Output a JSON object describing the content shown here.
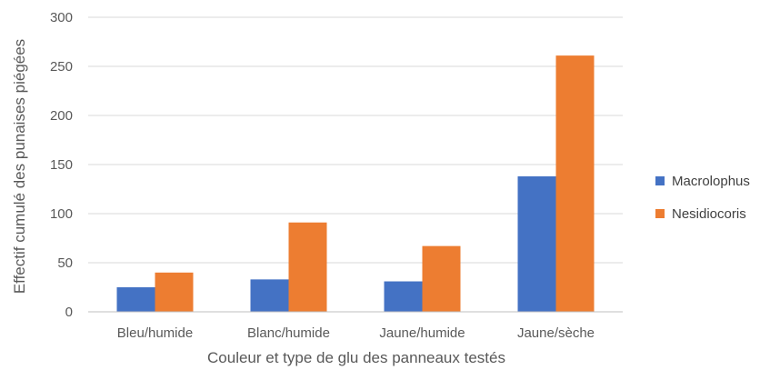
{
  "chart_data": {
    "type": "bar",
    "categories": [
      "Bleu/humide",
      "Blanc/humide",
      "Jaune/humide",
      "Jaune/sèche"
    ],
    "series": [
      {
        "name": "Macrolophus",
        "color": "#4472C4",
        "values": [
          25,
          33,
          31,
          138
        ]
      },
      {
        "name": "Nesidiocoris",
        "color": "#ED7D31",
        "values": [
          40,
          91,
          67,
          261
        ]
      }
    ],
    "xlabel": "Couleur et type de glu des panneaux testés",
    "ylabel": "Effectif cumulé des punaises piégées",
    "ylim": [
      0,
      300
    ],
    "yticks": [
      0,
      50,
      100,
      150,
      200,
      250,
      300
    ],
    "grid": true,
    "legend_position": "right"
  }
}
